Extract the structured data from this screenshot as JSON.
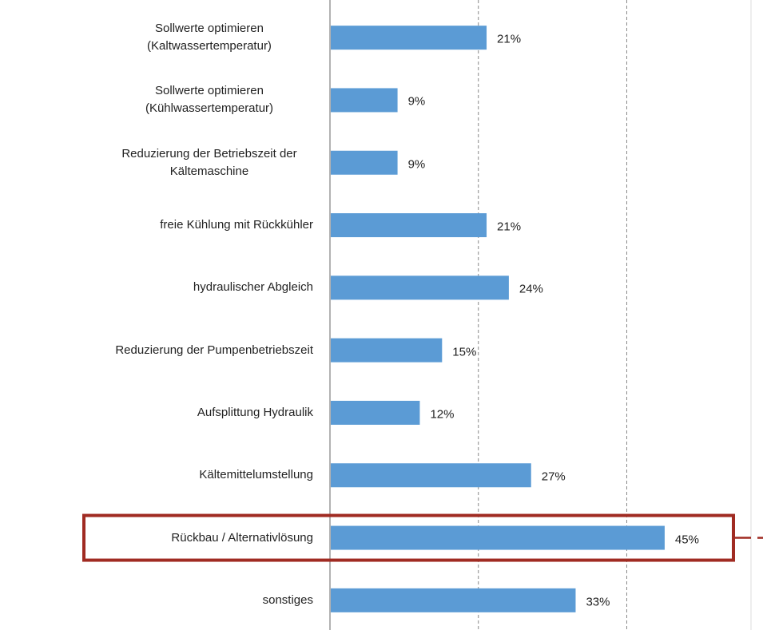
{
  "chart_data": {
    "type": "barh",
    "categories": [
      "Sollwerte optimieren\n(Kaltwassertemperatur)",
      "Sollwerte optimieren\n(Kühlwassertemperatur)",
      "Reduzierung der Betriebszeit der\nKältemaschine",
      "freie Kühlung mit Rückkühler",
      "hydraulischer Abgleich",
      "Reduzierung der Pumpenbetriebszeit",
      "Aufsplittung Hydraulik",
      "Kältemittelumstellung",
      "Rückbau / Alternativlösung",
      "sonstiges"
    ],
    "values": [
      21,
      9,
      9,
      21,
      24,
      15,
      12,
      27,
      45,
      33
    ],
    "value_labels": [
      "21%",
      "9%",
      "9%",
      "21%",
      "24%",
      "15%",
      "12%",
      "27%",
      "45%",
      "33%"
    ],
    "color": "#5b9bd5",
    "xlim": [
      0,
      57.5
    ],
    "gridlines": [
      20,
      40
    ],
    "highlight": 8
  }
}
